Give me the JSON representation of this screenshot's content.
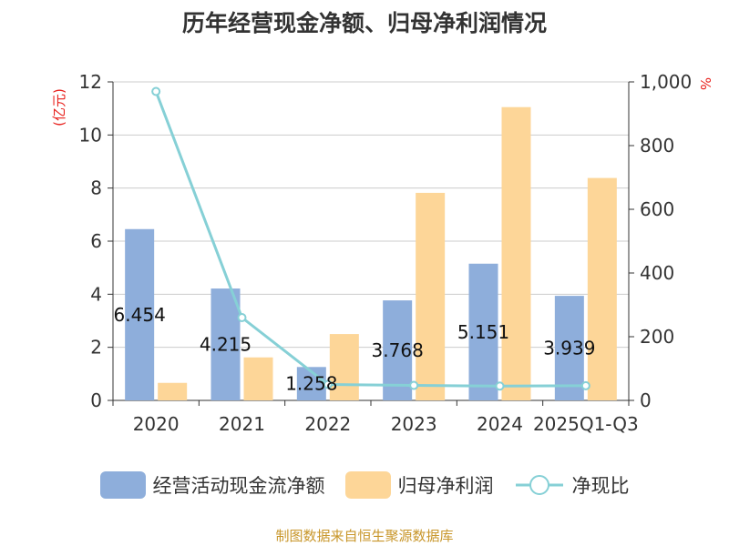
{
  "chart_data": {
    "type": "bar",
    "title": "历年经营现金净额、归母净利润情况",
    "categories": [
      "2020",
      "2021",
      "2022",
      "2023",
      "2024",
      "2025Q1-Q3"
    ],
    "left_axis_unit": "(亿元)",
    "right_axis_unit": "%",
    "ylim": [
      0,
      12
    ],
    "yticks": [
      0,
      2,
      4,
      6,
      8,
      10,
      12
    ],
    "y2lim": [
      0,
      1000
    ],
    "y2ticks": [
      0,
      200,
      400,
      600,
      800,
      1000
    ],
    "y2tick_labels": [
      "0",
      "200",
      "400",
      "600",
      "800",
      "1,000"
    ],
    "grid": true,
    "legend_position": "bottom",
    "series": [
      {
        "name": "经营活动现金流净额",
        "type": "bar",
        "axis": "left",
        "color": "#8eaedb",
        "values": [
          6.454,
          4.215,
          1.258,
          3.768,
          5.151,
          3.939
        ],
        "labels": [
          "6.454",
          "4.215",
          "1.258",
          "3.768",
          "5.151",
          "3.939"
        ]
      },
      {
        "name": "归母净利润",
        "type": "bar",
        "axis": "left",
        "color": "#fdd698",
        "values": [
          0.66,
          1.62,
          2.5,
          7.82,
          11.05,
          8.38
        ]
      },
      {
        "name": "净现比",
        "type": "line",
        "axis": "right",
        "color": "#86d0d6",
        "values": [
          970,
          260,
          50,
          47,
          45,
          46
        ]
      }
    ]
  },
  "source_note": "制图数据来自恒生聚源数据库"
}
